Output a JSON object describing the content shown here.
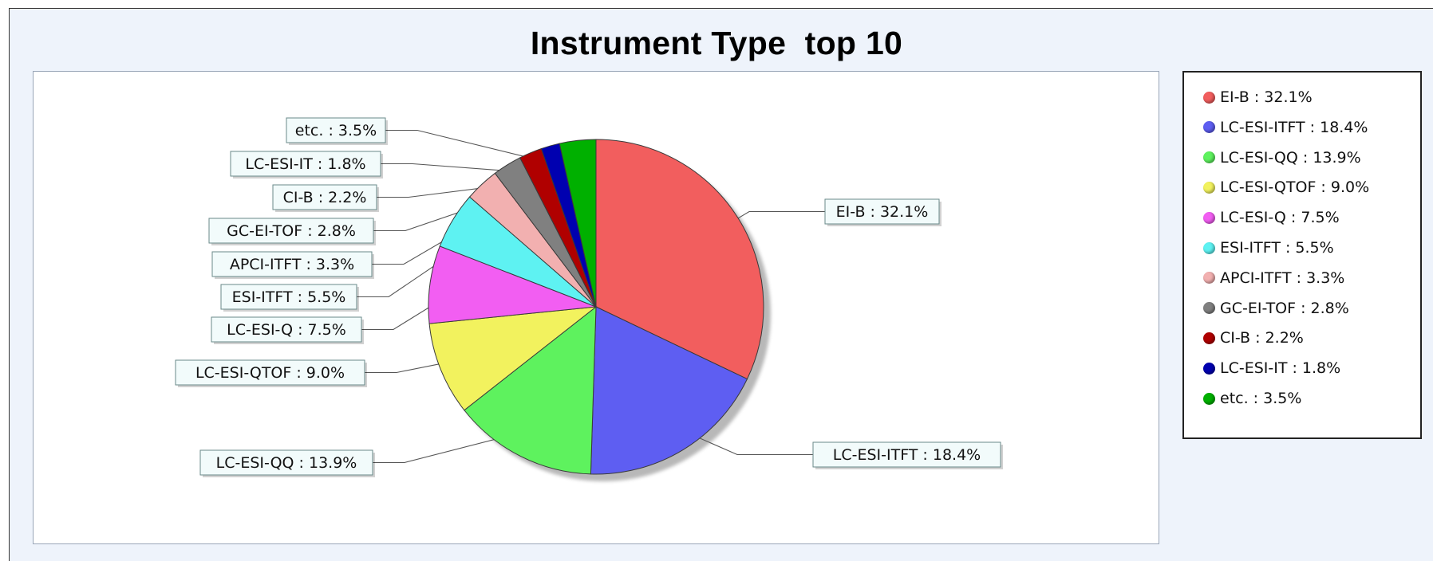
{
  "chart_data": {
    "type": "pie",
    "title": "Instrument Type  top 10",
    "slices": [
      {
        "name": "EI-B",
        "value": 32.1,
        "label": "EI-B : 32.1%",
        "color": "#f25e5e"
      },
      {
        "name": "LC-ESI-ITFT",
        "value": 18.4,
        "label": "LC-ESI-ITFT : 18.4%",
        "color": "#5e5ef2"
      },
      {
        "name": "LC-ESI-QQ",
        "value": 13.9,
        "label": "LC-ESI-QQ : 13.9%",
        "color": "#5ef25e"
      },
      {
        "name": "LC-ESI-QTOF",
        "value": 9.0,
        "label": "LC-ESI-QTOF : 9.0%",
        "color": "#f2f25e"
      },
      {
        "name": "LC-ESI-Q",
        "value": 7.5,
        "label": "LC-ESI-Q : 7.5%",
        "color": "#f25ef2"
      },
      {
        "name": "ESI-ITFT",
        "value": 5.5,
        "label": "ESI-ITFT : 5.5%",
        "color": "#5ef2f2"
      },
      {
        "name": "APCI-ITFT",
        "value": 3.3,
        "label": "APCI-ITFT : 3.3%",
        "color": "#f2b0b0"
      },
      {
        "name": "GC-EI-TOF",
        "value": 2.8,
        "label": "GC-EI-TOF : 2.8%",
        "color": "#808080"
      },
      {
        "name": "CI-B",
        "value": 2.2,
        "label": "CI-B : 2.2%",
        "color": "#b00000"
      },
      {
        "name": "LC-ESI-IT",
        "value": 1.8,
        "label": "LC-ESI-IT : 1.8%",
        "color": "#0000b0"
      },
      {
        "name": "etc.",
        "value": 3.5,
        "label": "etc. : 3.5%",
        "color": "#00b000"
      }
    ],
    "legend_position": "right",
    "start_angle": "12 o'clock",
    "direction": "clockwise"
  }
}
